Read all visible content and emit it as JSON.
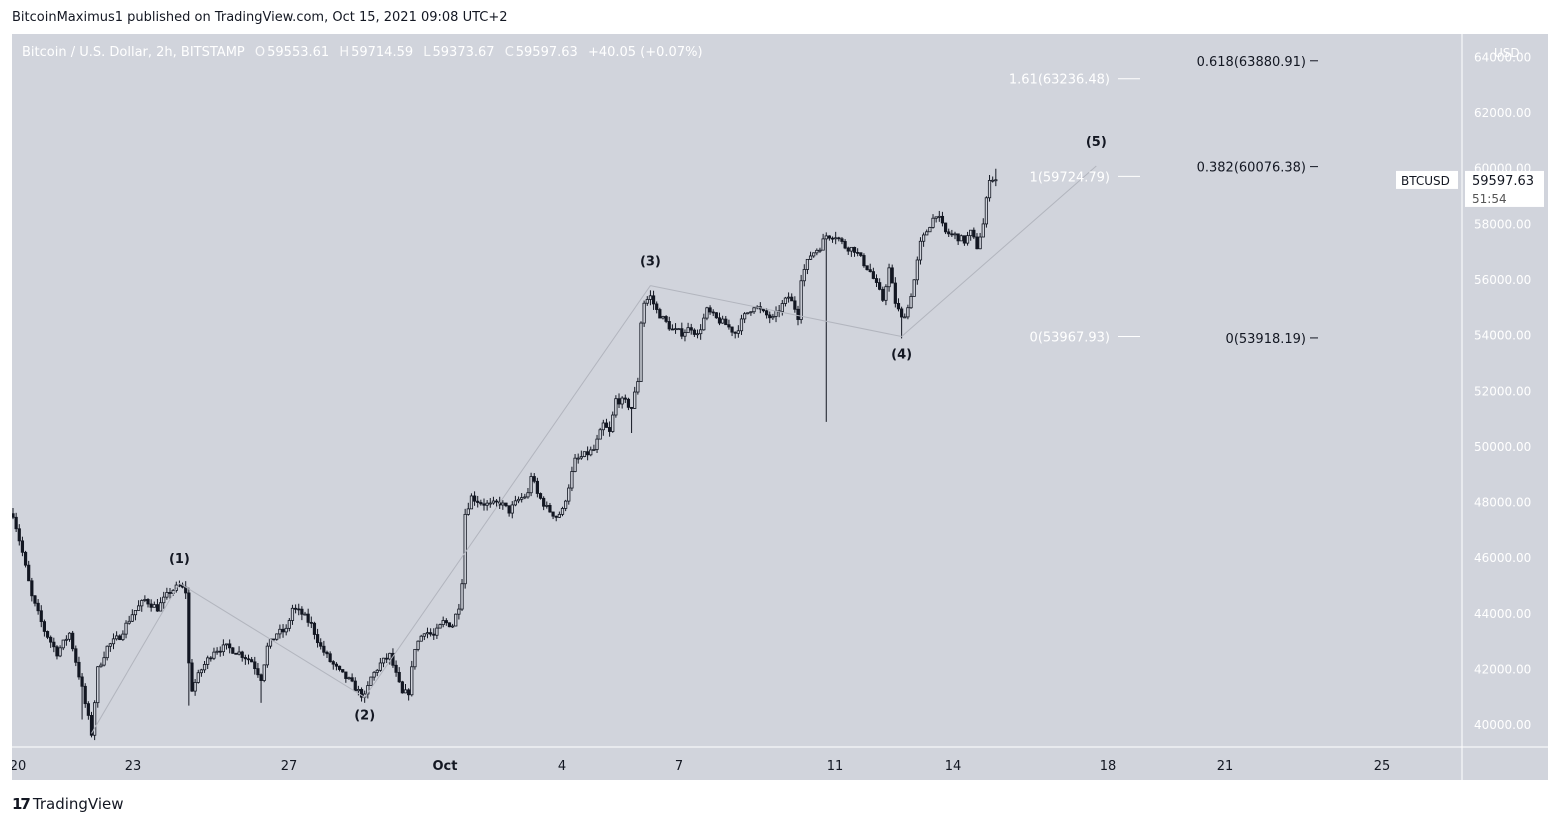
{
  "header": {
    "publisher_line": "BitcoinMaximus1 published on TradingView.com, Oct 15, 2021 09:08 UTC+2"
  },
  "legend": {
    "symbol": "Bitcoin / U.S. Dollar, 2h, BITSTAMP",
    "open_key": "O",
    "open": "59553.61",
    "high_key": "H",
    "high": "59714.59",
    "low_key": "L",
    "low": "59373.67",
    "close_key": "C",
    "close": "59597.63",
    "change": "+40.05 (+0.07%)"
  },
  "footer": {
    "brand": "TradingView",
    "logo_glyph": "17"
  },
  "colors": {
    "background": "#d1d4dc",
    "candle": "#131722",
    "text_white": "#ffffff",
    "wave_line": "#b2b5be"
  },
  "chart_data": {
    "type": "candlestick",
    "currency": "USD",
    "x_tick_labels": [
      "20",
      "23",
      "27",
      "Oct",
      "4",
      "7",
      "11",
      "14",
      "18",
      "21",
      "25"
    ],
    "y_tick_labels": [
      "40000.00",
      "42000.00",
      "44000.00",
      "46000.00",
      "48000.00",
      "50000.00",
      "52000.00",
      "54000.00",
      "56000.00",
      "58000.00",
      "60000.00",
      "62000.00",
      "64000.00"
    ],
    "ylim": [
      39500,
      64700
    ],
    "last_price": {
      "symbol": "BTCUSD",
      "value": "59597.63",
      "countdown": "51:54"
    },
    "price_path": [
      [
        0,
        47600
      ],
      [
        3,
        46200
      ],
      [
        6,
        44600
      ],
      [
        10,
        43400
      ],
      [
        14,
        42600
      ],
      [
        18,
        43300
      ],
      [
        22,
        41300
      ],
      [
        25,
        39700
      ],
      [
        27,
        42000
      ],
      [
        30,
        42800
      ],
      [
        34,
        43200
      ],
      [
        38,
        44000
      ],
      [
        42,
        44500
      ],
      [
        46,
        44200
      ],
      [
        50,
        44800
      ],
      [
        53,
        45000
      ],
      [
        55,
        44800
      ],
      [
        56,
        42200
      ],
      [
        57,
        41300
      ],
      [
        60,
        42000
      ],
      [
        64,
        42700
      ],
      [
        68,
        42800
      ],
      [
        72,
        42600
      ],
      [
        76,
        42300
      ],
      [
        79,
        41700
      ],
      [
        81,
        42800
      ],
      [
        84,
        43300
      ],
      [
        87,
        43400
      ],
      [
        89,
        44200
      ],
      [
        92,
        44000
      ],
      [
        95,
        43600
      ],
      [
        98,
        42800
      ],
      [
        101,
        42300
      ],
      [
        104,
        41900
      ],
      [
        107,
        41600
      ],
      [
        110,
        41200
      ],
      [
        112,
        41000
      ],
      [
        114,
        41700
      ],
      [
        117,
        42200
      ],
      [
        120,
        42500
      ],
      [
        122,
        41800
      ],
      [
        124,
        41100
      ],
      [
        126,
        41200
      ],
      [
        128,
        42800
      ],
      [
        131,
        43400
      ],
      [
        134,
        43200
      ],
      [
        137,
        43700
      ],
      [
        140,
        43600
      ],
      [
        142,
        44300
      ],
      [
        143,
        45200
      ],
      [
        144,
        47600
      ],
      [
        146,
        48200
      ],
      [
        149,
        48000
      ],
      [
        152,
        47900
      ],
      [
        155,
        48000
      ],
      [
        158,
        47700
      ],
      [
        161,
        48100
      ],
      [
        164,
        48300
      ],
      [
        165,
        49000
      ],
      [
        167,
        48300
      ],
      [
        170,
        47800
      ],
      [
        173,
        47500
      ],
      [
        175,
        47700
      ],
      [
        177,
        48600
      ],
      [
        179,
        49500
      ],
      [
        182,
        49700
      ],
      [
        185,
        49900
      ],
      [
        188,
        50800
      ],
      [
        190,
        50500
      ],
      [
        192,
        51700
      ],
      [
        195,
        51600
      ],
      [
        197,
        51400
      ],
      [
        199,
        52400
      ],
      [
        200,
        54500
      ],
      [
        201,
        55200
      ],
      [
        203,
        55400
      ],
      [
        205,
        54900
      ],
      [
        207,
        54600
      ],
      [
        210,
        54200
      ],
      [
        213,
        54100
      ],
      [
        216,
        54300
      ],
      [
        218,
        54000
      ],
      [
        221,
        54900
      ],
      [
        224,
        54600
      ],
      [
        227,
        54400
      ],
      [
        230,
        54100
      ],
      [
        233,
        54700
      ],
      [
        236,
        55100
      ],
      [
        239,
        54800
      ],
      [
        242,
        54600
      ],
      [
        245,
        55100
      ],
      [
        247,
        55400
      ],
      [
        249,
        55000
      ],
      [
        250,
        54700
      ],
      [
        251,
        56100
      ],
      [
        254,
        56900
      ],
      [
        257,
        57200
      ],
      [
        259,
        57600
      ],
      [
        262,
        57600
      ],
      [
        265,
        57200
      ],
      [
        268,
        57100
      ],
      [
        271,
        56600
      ],
      [
        273,
        56300
      ],
      [
        275,
        55800
      ],
      [
        277,
        55300
      ],
      [
        279,
        56400
      ],
      [
        281,
        55200
      ],
      [
        283,
        54600
      ],
      [
        285,
        55000
      ],
      [
        287,
        56000
      ],
      [
        289,
        57300
      ],
      [
        292,
        58000
      ],
      [
        294,
        58400
      ],
      [
        297,
        57700
      ],
      [
        300,
        57600
      ],
      [
        303,
        57400
      ],
      [
        305,
        57700
      ],
      [
        307,
        57200
      ],
      [
        309,
        58000
      ],
      [
        311,
        59700
      ],
      [
        313,
        59600
      ]
    ],
    "wave_labels": [
      "(1)",
      "(2)",
      "(3)",
      "(4)",
      "(5)"
    ],
    "wave_points": [
      {
        "label": "(1)",
        "i": 53,
        "price": 45100,
        "pos": "above"
      },
      {
        "label": "(2)",
        "i": 112,
        "price": 41000,
        "pos": "below"
      },
      {
        "label": "(3)",
        "i": 203,
        "price": 55800,
        "pos": "above"
      },
      {
        "label": "(4)",
        "i": 283,
        "price": 53968,
        "pos": "below"
      },
      {
        "label": "(5)",
        "i": 345,
        "price": 60100,
        "pos": "above"
      }
    ],
    "fib_levels_left": [
      {
        "label": "1.61(63236.48)",
        "price": 63236.48
      },
      {
        "label": "1(59724.79)",
        "price": 59724.79
      },
      {
        "label": "0(53967.93)",
        "price": 53967.93
      }
    ],
    "fib_levels_right": [
      {
        "label": "0.618(63880.91)",
        "price": 63880.91
      },
      {
        "label": "0.382(60076.38)",
        "price": 60076.38
      },
      {
        "label": "0(53918.19)",
        "price": 53918.19
      }
    ]
  }
}
